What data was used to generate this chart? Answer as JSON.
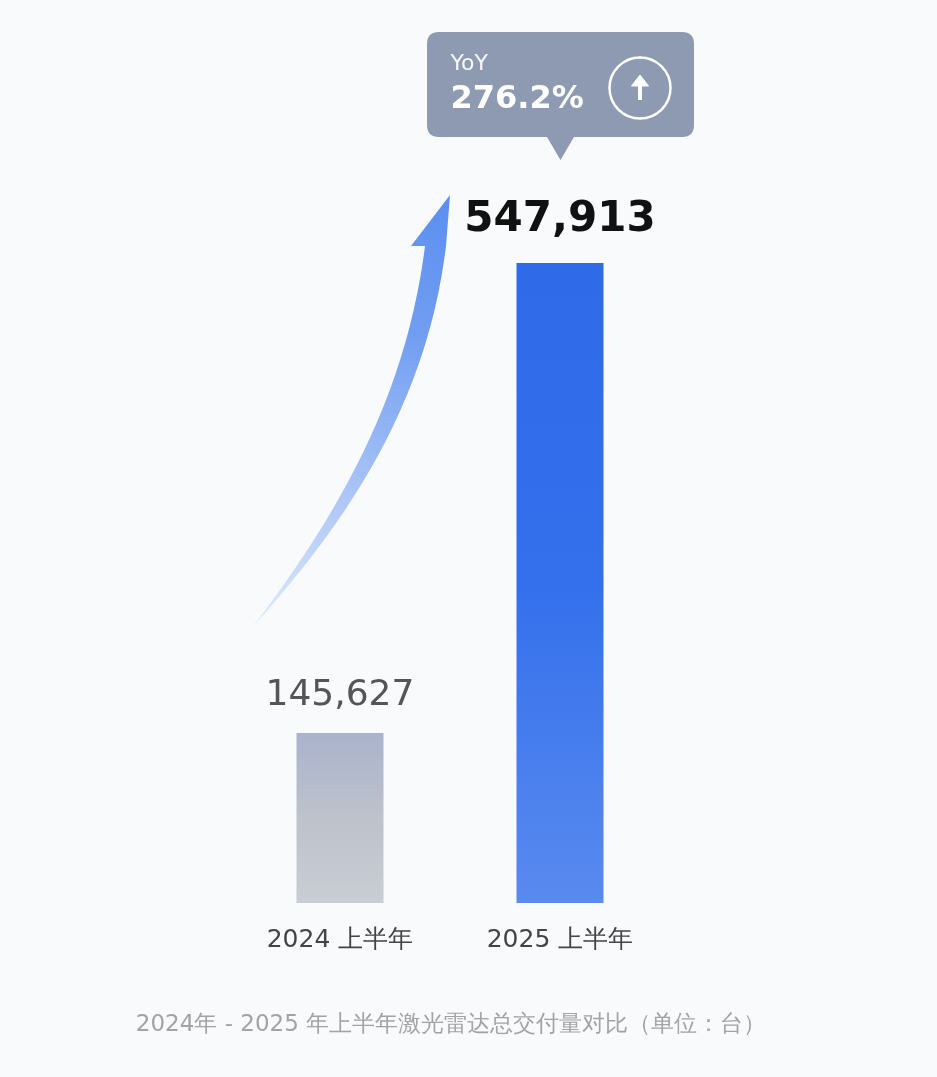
{
  "chart_data": {
    "type": "bar",
    "categories": [
      "2024 上半年",
      "2025 上半年"
    ],
    "values": [
      145627,
      547913
    ],
    "colors": [
      "#bdc2cb",
      "#3470ec"
    ],
    "value_labels": [
      "145,627",
      "547,913"
    ],
    "tick_labels": "x",
    "annotations": [
      "YoY\n276.2%",
      "2024年 - 2025 年上半年激光雷达总交付量对比（单位：台）"
    ]
  }
}
